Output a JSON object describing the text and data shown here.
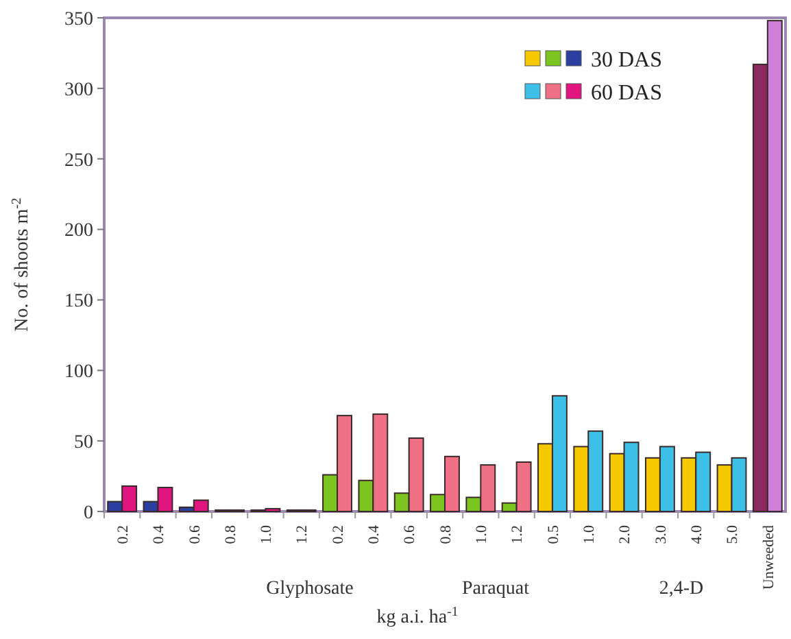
{
  "chart_data": {
    "type": "bar",
    "ylabel": "No. of shoots m$^{-2}$",
    "xlabel": "kg a.i. ha$^{-1}$",
    "categories": [
      "0.2",
      "0.4",
      "0.6",
      "0.8",
      "1.0",
      "1.2",
      "0.2",
      "0.4",
      "0.6",
      "0.8",
      "1.0",
      "1.2",
      "0.5",
      "1.0",
      "2.0",
      "3.0",
      "4.0",
      "5.0",
      "Unweeded"
    ],
    "series": [
      {
        "name": "30 DAS",
        "values": [
          7,
          7,
          3,
          1,
          1,
          1,
          26,
          22,
          13,
          12,
          10,
          6,
          48,
          46,
          41,
          38,
          38,
          33,
          317
        ],
        "colors": [
          "#2b3fa0",
          "#2b3fa0",
          "#2b3fa0",
          "#2b3fa0",
          "#2b3fa0",
          "#2b3fa0",
          "#7cc520",
          "#7cc520",
          "#7cc520",
          "#7cc520",
          "#7cc520",
          "#7cc520",
          "#f5c800",
          "#f5c800",
          "#f5c800",
          "#f5c800",
          "#f5c800",
          "#f5c800",
          "#8b2a5e"
        ]
      },
      {
        "name": "60 DAS",
        "values": [
          18,
          17,
          8,
          1,
          2,
          1,
          68,
          69,
          52,
          39,
          33,
          35,
          82,
          57,
          49,
          46,
          42,
          38,
          348
        ],
        "colors": [
          "#e0157f",
          "#e0157f",
          "#e0157f",
          "#e0157f",
          "#e0157f",
          "#e0157f",
          "#f07085",
          "#f07085",
          "#f07085",
          "#f07085",
          "#f07085",
          "#f07085",
          "#3cc0e8",
          "#3cc0e8",
          "#3cc0e8",
          "#3cc0e8",
          "#3cc0e8",
          "#3cc0e8",
          "#d080d8"
        ]
      }
    ],
    "ylim": [
      0,
      350
    ],
    "yticks": [
      0,
      50,
      100,
      150,
      200,
      250,
      300,
      350
    ],
    "grid": false,
    "legend": "top right",
    "annotations": [
      "Glyphosate",
      "Paraquat",
      "2,4-D"
    ]
  }
}
